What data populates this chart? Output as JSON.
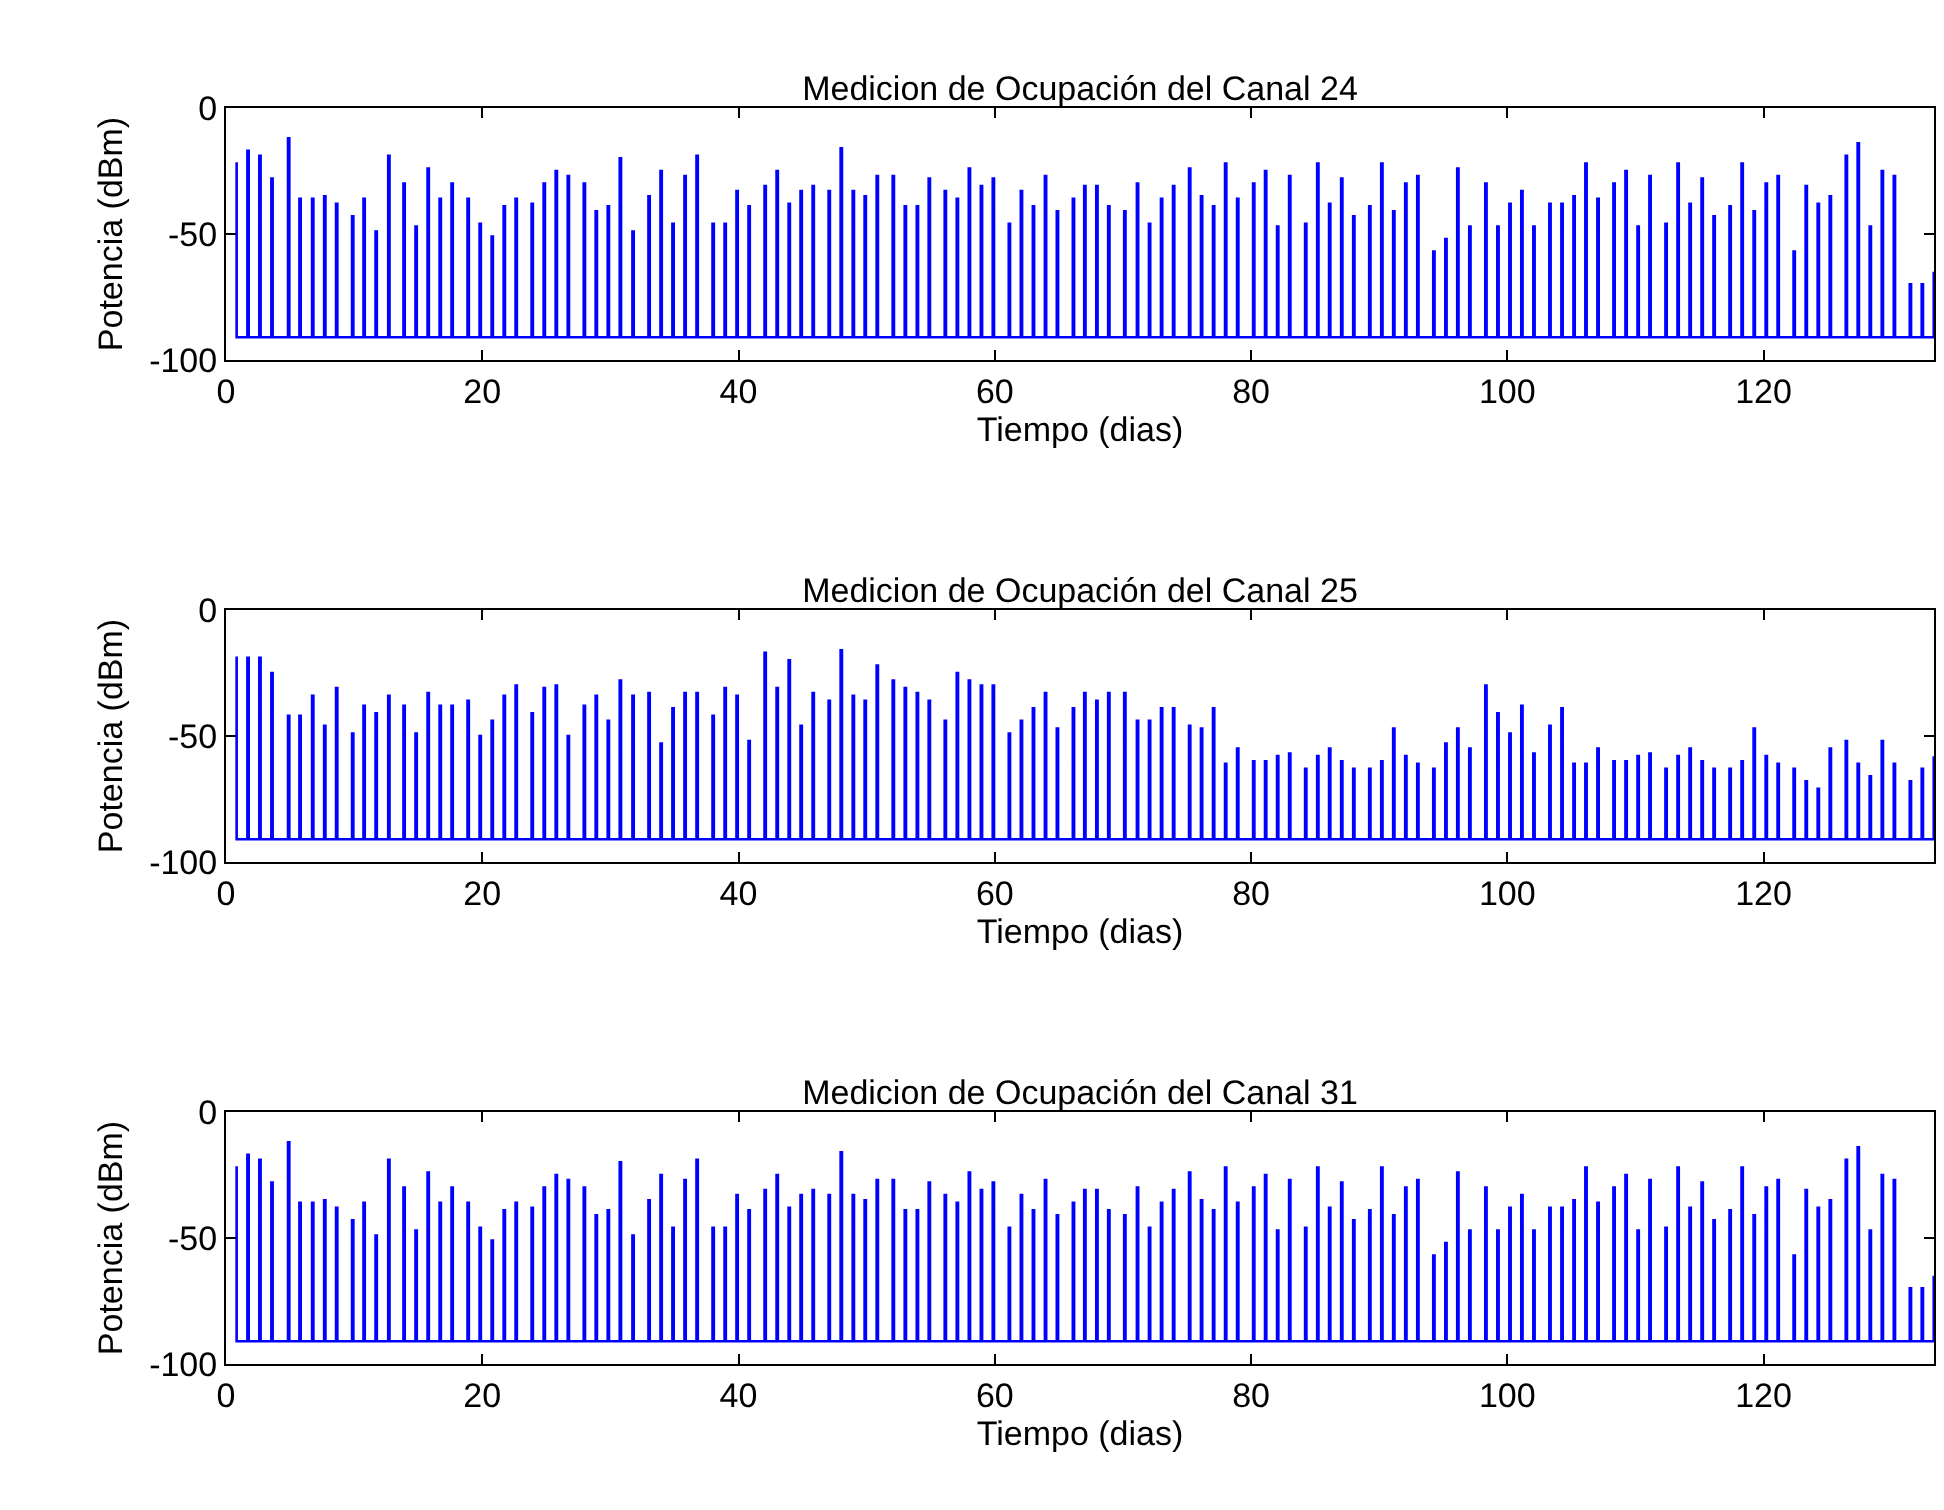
{
  "chart_data": [
    {
      "type": "step",
      "title": "Medicion de Ocupación del Canal 24",
      "xlabel": "Tiempo (dias)",
      "ylabel": "Potencia (dBm)",
      "color": "#0000ff",
      "xlim": [
        0,
        133.3
      ],
      "ylim": [
        -100,
        0
      ],
      "xticks": [
        0,
        20,
        40,
        60,
        80,
        100,
        120
      ],
      "yticks": [
        -100,
        -50,
        0
      ],
      "x": [
        0.73,
        0.83,
        1.67,
        1.77,
        2.6,
        2.7,
        3.54,
        3.64,
        4.84,
        4.94,
        5.73,
        5.83,
        6.72,
        6.82,
        7.66,
        7.76,
        8.59,
        8.69,
        9.84,
        9.94,
        10.73,
        10.83,
        11.67,
        11.77,
        12.66,
        12.76,
        13.85,
        13.95,
        14.79,
        14.89,
        15.73,
        15.83,
        16.67,
        16.77,
        17.6,
        17.7,
        18.85,
        18.95,
        19.79,
        19.89,
        20.73,
        20.83,
        21.67,
        21.77,
        22.6,
        22.7,
        23.85,
        23.95,
        24.79,
        24.89,
        25.73,
        25.83,
        26.67,
        26.77,
        27.92,
        28.02,
        28.85,
        28.95,
        29.79,
        29.89,
        30.73,
        30.83,
        31.72,
        31.82,
        32.97,
        33.07,
        33.91,
        34.01,
        34.84,
        34.94,
        35.78,
        35.88,
        36.72,
        36.82,
        37.97,
        38.07,
        38.91,
        39.01,
        39.84,
        39.94,
        40.78,
        40.88,
        42.03,
        42.13,
        42.97,
        43.07,
        43.91,
        44.01,
        44.84,
        44.94,
        45.78,
        45.88,
        47.03,
        47.13,
        47.97,
        48.07,
        48.91,
        49.01,
        49.84,
        49.94,
        50.78,
        50.88,
        52.03,
        52.13,
        52.97,
        53.07,
        53.91,
        54.01,
        54.84,
        54.94,
        56.09,
        56.19,
        57.03,
        57.13,
        57.97,
        58.07,
        58.91,
        59.01,
        59.84,
        59.94,
        61.09,
        61.19,
        62.03,
        62.13,
        62.97,
        63.07,
        63.91,
        64.01,
        64.84,
        64.94,
        66.09,
        66.19,
        66.98,
        67.08,
        67.92,
        68.02,
        68.85,
        68.95,
        70.1,
        70.2,
        71.09,
        71.19,
        72.03,
        72.13,
        72.97,
        73.07,
        73.91,
        74.01,
        75.16,
        75.26,
        76.09,
        76.19,
        77.03,
        77.13,
        77.97,
        78.07,
        78.91,
        79.01,
        80.16,
        80.26,
        81.09,
        81.19,
        82.03,
        82.13,
        82.97,
        83.07,
        84.22,
        84.32,
        85.16,
        85.26,
        86.09,
        86.19,
        87.03,
        87.13,
        87.97,
        88.07,
        89.22,
        89.32,
        90.16,
        90.26,
        91.09,
        91.19,
        92.03,
        92.13,
        92.97,
        93.07,
        94.22,
        94.32,
        95.16,
        95.26,
        96.09,
        96.19,
        97.03,
        97.13,
        98.28,
        98.38,
        99.22,
        99.32,
        100.16,
        100.26,
        101.09,
        101.19,
        102.03,
        102.13,
        103.28,
        103.38,
        104.22,
        104.32,
        105.16,
        105.26,
        106.09,
        106.19,
        107.03,
        107.13,
        108.28,
        108.38,
        109.22,
        109.32,
        110.16,
        110.26,
        111.09,
        111.19,
        112.34,
        112.44,
        113.28,
        113.38,
        114.22,
        114.32,
        115.16,
        115.26,
        116.09,
        116.19,
        117.34,
        117.44,
        118.28,
        118.38,
        119.22,
        119.32,
        120.16,
        120.26,
        121.09,
        121.19,
        122.34,
        122.44,
        123.28,
        123.38,
        124.22,
        124.32,
        125.16,
        125.26,
        126.41,
        126.51,
        127.34,
        127.44,
        128.28,
        128.38,
        129.22,
        129.32,
        130.16,
        130.26,
        131.41,
        131.51,
        132.34,
        132.44,
        133.28
      ],
      "values": [
        -22,
        -91,
        -17,
        -91,
        -19,
        -91,
        -28,
        -91,
        -12,
        -91,
        -36,
        -91,
        -36,
        -91,
        -35,
        -91,
        -38,
        -91,
        -43,
        -91,
        -36,
        -91,
        -49,
        -91,
        -19,
        -91,
        -30,
        -91,
        -47,
        -91,
        -24,
        -91,
        -36,
        -91,
        -30,
        -91,
        -36,
        -91,
        -46,
        -91,
        -51,
        -91,
        -39,
        -91,
        -36,
        -91,
        -38,
        -91,
        -30,
        -91,
        -25,
        -91,
        -27,
        -91,
        -30,
        -91,
        -41,
        -91,
        -39,
        -91,
        -20,
        -91,
        -49,
        -91,
        -35,
        -91,
        -25,
        -91,
        -46,
        -91,
        -27,
        -91,
        -19,
        -91,
        -46,
        -91,
        -46,
        -91,
        -33,
        -91,
        -39,
        -91,
        -31,
        -91,
        -25,
        -91,
        -38,
        -91,
        -33,
        -91,
        -31,
        -91,
        -33,
        -91,
        -16,
        -91,
        -33,
        -91,
        -35,
        -91,
        -27,
        -91,
        -27,
        -91,
        -39,
        -91,
        -39,
        -91,
        -28,
        -91,
        -33,
        -91,
        -36,
        -91,
        -24,
        -91,
        -31,
        -91,
        -28,
        -91,
        -46,
        -91,
        -33,
        -91,
        -39,
        -91,
        -27,
        -91,
        -41,
        -91,
        -36,
        -91,
        -31,
        -91,
        -31,
        -91,
        -39,
        -91,
        -41,
        -91,
        -30,
        -91,
        -46,
        -91,
        -36,
        -91,
        -31,
        -91,
        -24,
        -91,
        -35,
        -91,
        -39,
        -91,
        -22,
        -91,
        -36,
        -91,
        -30,
        -91,
        -25,
        -91,
        -47,
        -91,
        -27,
        -91,
        -46,
        -91,
        -22,
        -91,
        -38,
        -91,
        -28,
        -91,
        -43,
        -91,
        -39,
        -91,
        -22,
        -91,
        -41,
        -91,
        -30,
        -91,
        -27,
        -91,
        -57,
        -91,
        -52,
        -91,
        -24,
        -91,
        -47,
        -91,
        -30,
        -91,
        -47,
        -91,
        -38,
        -91,
        -33,
        -91,
        -47,
        -91,
        -38,
        -91,
        -38,
        -91,
        -35,
        -91,
        -22,
        -91,
        -36,
        -91,
        -30,
        -91,
        -25,
        -91,
        -47,
        -91,
        -27,
        -91,
        -46,
        -91,
        -22,
        -91,
        -38,
        -91,
        -28,
        -91,
        -43,
        -91,
        -39,
        -91,
        -22,
        -91,
        -41,
        -91,
        -30,
        -91,
        -27,
        -91,
        -57,
        -91,
        -31,
        -91,
        -38,
        -91,
        -35,
        -91,
        -19,
        -91,
        -14,
        -91,
        -47,
        -91,
        -25,
        -91,
        -27,
        -91,
        -70,
        -91,
        -70,
        -91,
        -65
      ]
    },
    {
      "type": "step",
      "title": "Medicion de Ocupación del Canal 25",
      "xlabel": "Tiempo (dias)",
      "ylabel": "Potencia (dBm)",
      "color": "#0000ff",
      "xlim": [
        0,
        133.3
      ],
      "ylim": [
        -100,
        0
      ],
      "xticks": [
        0,
        20,
        40,
        60,
        80,
        100,
        120
      ],
      "yticks": [
        -100,
        -50,
        0
      ],
      "x": [
        0.73,
        0.83,
        1.67,
        1.77,
        2.6,
        2.7,
        3.54,
        3.64,
        4.84,
        4.94,
        5.73,
        5.83,
        6.72,
        6.82,
        7.66,
        7.76,
        8.59,
        8.69,
        9.84,
        9.94,
        10.73,
        10.83,
        11.67,
        11.77,
        12.66,
        12.76,
        13.85,
        13.95,
        14.79,
        14.89,
        15.73,
        15.83,
        16.67,
        16.77,
        17.6,
        17.7,
        18.85,
        18.95,
        19.79,
        19.89,
        20.73,
        20.83,
        21.67,
        21.77,
        22.6,
        22.7,
        23.85,
        23.95,
        24.79,
        24.89,
        25.73,
        25.83,
        26.67,
        26.77,
        27.92,
        28.02,
        28.85,
        28.95,
        29.79,
        29.89,
        30.73,
        30.83,
        31.72,
        31.82,
        32.97,
        33.07,
        33.91,
        34.01,
        34.84,
        34.94,
        35.78,
        35.88,
        36.72,
        36.82,
        37.97,
        38.07,
        38.91,
        39.01,
        39.84,
        39.94,
        40.78,
        40.88,
        42.03,
        42.13,
        42.97,
        43.07,
        43.91,
        44.01,
        44.84,
        44.94,
        45.78,
        45.88,
        47.03,
        47.13,
        47.97,
        48.07,
        48.91,
        49.01,
        49.84,
        49.94,
        50.78,
        50.88,
        52.03,
        52.13,
        52.97,
        53.07,
        53.91,
        54.01,
        54.84,
        54.94,
        56.09,
        56.19,
        57.03,
        57.13,
        57.97,
        58.07,
        58.91,
        59.01,
        59.84,
        59.94,
        61.09,
        61.19,
        62.03,
        62.13,
        62.97,
        63.07,
        63.91,
        64.01,
        64.84,
        64.94,
        66.09,
        66.19,
        66.98,
        67.08,
        67.92,
        68.02,
        68.85,
        68.95,
        70.1,
        70.2,
        71.09,
        71.19,
        72.03,
        72.13,
        72.97,
        73.07,
        73.91,
        74.01,
        75.16,
        75.26,
        76.09,
        76.19,
        77.03,
        77.13,
        77.97,
        78.07,
        78.91,
        79.01,
        80.16,
        80.26,
        81.09,
        81.19,
        82.03,
        82.13,
        82.97,
        83.07,
        84.22,
        84.32,
        85.16,
        85.26,
        86.09,
        86.19,
        87.03,
        87.13,
        87.97,
        88.07,
        89.22,
        89.32,
        90.16,
        90.26,
        91.09,
        91.19,
        92.03,
        92.13,
        92.97,
        93.07,
        94.22,
        94.32,
        95.16,
        95.26,
        96.09,
        96.19,
        97.03,
        97.13,
        98.28,
        98.38,
        99.22,
        99.32,
        100.16,
        100.26,
        101.09,
        101.19,
        102.03,
        102.13,
        103.28,
        103.38,
        104.22,
        104.32,
        105.16,
        105.26,
        106.09,
        106.19,
        107.03,
        107.13,
        108.28,
        108.38,
        109.22,
        109.32,
        110.16,
        110.26,
        111.09,
        111.19,
        112.34,
        112.44,
        113.28,
        113.38,
        114.22,
        114.32,
        115.16,
        115.26,
        116.09,
        116.19,
        117.34,
        117.44,
        118.28,
        118.38,
        119.22,
        119.32,
        120.16,
        120.26,
        121.09,
        121.19,
        122.34,
        122.44,
        123.28,
        123.38,
        124.22,
        124.32,
        125.16,
        125.26,
        126.41,
        126.51,
        127.34,
        127.44,
        128.28,
        128.38,
        129.22,
        129.32,
        130.16,
        130.26,
        131.41,
        131.51,
        132.34,
        132.44,
        133.28
      ],
      "values": [
        -19,
        -91,
        -19,
        -91,
        -19,
        -91,
        -25,
        -91,
        -42,
        -91,
        -42,
        -91,
        -34,
        -91,
        -46,
        -91,
        -31,
        -91,
        -49,
        -91,
        -38,
        -91,
        -41,
        -91,
        -34,
        -91,
        -38,
        -91,
        -49,
        -91,
        -33,
        -91,
        -38,
        -91,
        -38,
        -91,
        -36,
        -91,
        -50,
        -91,
        -44,
        -91,
        -34,
        -91,
        -30,
        -91,
        -41,
        -91,
        -31,
        -91,
        -30,
        -91,
        -50,
        -91,
        -38,
        -91,
        -34,
        -91,
        -44,
        -91,
        -28,
        -91,
        -34,
        -91,
        -33,
        -91,
        -53,
        -91,
        -39,
        -91,
        -33,
        -91,
        -33,
        -91,
        -42,
        -91,
        -31,
        -91,
        -34,
        -91,
        -52,
        -91,
        -17,
        -91,
        -31,
        -91,
        -20,
        -91,
        -46,
        -91,
        -33,
        -91,
        -36,
        -91,
        -16,
        -91,
        -34,
        -91,
        -36,
        -91,
        -22,
        -91,
        -28,
        -91,
        -31,
        -91,
        -33,
        -91,
        -36,
        -91,
        -44,
        -91,
        -25,
        -91,
        -28,
        -91,
        -30,
        -91,
        -30,
        -91,
        -49,
        -91,
        -44,
        -91,
        -39,
        -91,
        -33,
        -91,
        -47,
        -91,
        -39,
        -91,
        -33,
        -91,
        -36,
        -91,
        -33,
        -91,
        -33,
        -91,
        -44,
        -91,
        -44,
        -91,
        -39,
        -91,
        -39,
        -91,
        -46,
        -91,
        -47,
        -91,
        -39,
        -91,
        -61,
        -91,
        -55,
        -91,
        -60,
        -91,
        -60,
        -91,
        -58,
        -91,
        -57,
        -91,
        -63,
        -91,
        -58,
        -91,
        -55,
        -91,
        -60,
        -91,
        -63,
        -91,
        -63,
        -91,
        -60,
        -91,
        -47,
        -91,
        -58,
        -91,
        -61,
        -91,
        -63,
        -91,
        -53,
        -91,
        -47,
        -91,
        -55,
        -91,
        -30,
        -91,
        -41,
        -91,
        -49,
        -91,
        -38,
        -91,
        -57,
        -91,
        -46,
        -91,
        -39,
        -91,
        -61,
        -91,
        -61,
        -91,
        -55,
        -91,
        -60,
        -91,
        -60,
        -91,
        -58,
        -91,
        -57,
        -91,
        -63,
        -91,
        -58,
        -91,
        -55,
        -91,
        -60,
        -91,
        -63,
        -91,
        -63,
        -91,
        -60,
        -91,
        -47,
        -91,
        -58,
        -91,
        -61,
        -91,
        -63,
        -91,
        -68,
        -91,
        -71,
        -91,
        -55,
        -91,
        -52,
        -91,
        -61,
        -91,
        -66,
        -91,
        -52,
        -91,
        -61,
        -91,
        -68,
        -91,
        -63,
        -91,
        -58
      ]
    },
    {
      "type": "step",
      "title": "Medicion de Ocupación del Canal 31",
      "xlabel": "Tiempo (dias)",
      "ylabel": "Potencia (dBm)",
      "color": "#0000ff",
      "xlim": [
        0,
        133.3
      ],
      "ylim": [
        -100,
        0
      ],
      "xticks": [
        0,
        20,
        40,
        60,
        80,
        100,
        120
      ],
      "yticks": [
        -100,
        -50,
        0
      ],
      "x": [
        0.73,
        0.83,
        1.67,
        1.77,
        2.6,
        2.7,
        3.54,
        3.64,
        4.84,
        4.94,
        5.73,
        5.83,
        6.72,
        6.82,
        7.66,
        7.76,
        8.59,
        8.69,
        9.84,
        9.94,
        10.73,
        10.83,
        11.67,
        11.77,
        12.66,
        12.76,
        13.85,
        13.95,
        14.79,
        14.89,
        15.73,
        15.83,
        16.67,
        16.77,
        17.6,
        17.7,
        18.85,
        18.95,
        19.79,
        19.89,
        20.73,
        20.83,
        21.67,
        21.77,
        22.6,
        22.7,
        23.85,
        23.95,
        24.79,
        24.89,
        25.73,
        25.83,
        26.67,
        26.77,
        27.92,
        28.02,
        28.85,
        28.95,
        29.79,
        29.89,
        30.73,
        30.83,
        31.72,
        31.82,
        32.97,
        33.07,
        33.91,
        34.01,
        34.84,
        34.94,
        35.78,
        35.88,
        36.72,
        36.82,
        37.97,
        38.07,
        38.91,
        39.01,
        39.84,
        39.94,
        40.78,
        40.88,
        42.03,
        42.13,
        42.97,
        43.07,
        43.91,
        44.01,
        44.84,
        44.94,
        45.78,
        45.88,
        47.03,
        47.13,
        47.97,
        48.07,
        48.91,
        49.01,
        49.84,
        49.94,
        50.78,
        50.88,
        52.03,
        52.13,
        52.97,
        53.07,
        53.91,
        54.01,
        54.84,
        54.94,
        56.09,
        56.19,
        57.03,
        57.13,
        57.97,
        58.07,
        58.91,
        59.01,
        59.84,
        59.94,
        61.09,
        61.19,
        62.03,
        62.13,
        62.97,
        63.07,
        63.91,
        64.01,
        64.84,
        64.94,
        66.09,
        66.19,
        66.98,
        67.08,
        67.92,
        68.02,
        68.85,
        68.95,
        70.1,
        70.2,
        71.09,
        71.19,
        72.03,
        72.13,
        72.97,
        73.07,
        73.91,
        74.01,
        75.16,
        75.26,
        76.09,
        76.19,
        77.03,
        77.13,
        77.97,
        78.07,
        78.91,
        79.01,
        80.16,
        80.26,
        81.09,
        81.19,
        82.03,
        82.13,
        82.97,
        83.07,
        84.22,
        84.32,
        85.16,
        85.26,
        86.09,
        86.19,
        87.03,
        87.13,
        87.97,
        88.07,
        89.22,
        89.32,
        90.16,
        90.26,
        91.09,
        91.19,
        92.03,
        92.13,
        92.97,
        93.07,
        94.22,
        94.32,
        95.16,
        95.26,
        96.09,
        96.19,
        97.03,
        97.13,
        98.28,
        98.38,
        99.22,
        99.32,
        100.16,
        100.26,
        101.09,
        101.19,
        102.03,
        102.13,
        103.28,
        103.38,
        104.22,
        104.32,
        105.16,
        105.26,
        106.09,
        106.19,
        107.03,
        107.13,
        108.28,
        108.38,
        109.22,
        109.32,
        110.16,
        110.26,
        111.09,
        111.19,
        112.34,
        112.44,
        113.28,
        113.38,
        114.22,
        114.32,
        115.16,
        115.26,
        116.09,
        116.19,
        117.34,
        117.44,
        118.28,
        118.38,
        119.22,
        119.32,
        120.16,
        120.26,
        121.09,
        121.19,
        122.34,
        122.44,
        123.28,
        123.38,
        124.22,
        124.32,
        125.16,
        125.26,
        126.41,
        126.51,
        127.34,
        127.44,
        128.28,
        128.38,
        129.22,
        129.32,
        130.16,
        130.26,
        131.41,
        131.51,
        132.34,
        132.44,
        133.28
      ],
      "values": [
        -22,
        -91,
        -17,
        -91,
        -19,
        -91,
        -28,
        -91,
        -12,
        -91,
        -36,
        -91,
        -36,
        -91,
        -35,
        -91,
        -38,
        -91,
        -43,
        -91,
        -36,
        -91,
        -49,
        -91,
        -19,
        -91,
        -30,
        -91,
        -47,
        -91,
        -24,
        -91,
        -36,
        -91,
        -30,
        -91,
        -36,
        -91,
        -46,
        -91,
        -51,
        -91,
        -39,
        -91,
        -36,
        -91,
        -38,
        -91,
        -30,
        -91,
        -25,
        -91,
        -27,
        -91,
        -30,
        -91,
        -41,
        -91,
        -39,
        -91,
        -20,
        -91,
        -49,
        -91,
        -35,
        -91,
        -25,
        -91,
        -46,
        -91,
        -27,
        -91,
        -19,
        -91,
        -46,
        -91,
        -46,
        -91,
        -33,
        -91,
        -39,
        -91,
        -31,
        -91,
        -25,
        -91,
        -38,
        -91,
        -33,
        -91,
        -31,
        -91,
        -33,
        -91,
        -16,
        -91,
        -33,
        -91,
        -35,
        -91,
        -27,
        -91,
        -27,
        -91,
        -39,
        -91,
        -39,
        -91,
        -28,
        -91,
        -33,
        -91,
        -36,
        -91,
        -24,
        -91,
        -31,
        -91,
        -28,
        -91,
        -46,
        -91,
        -33,
        -91,
        -39,
        -91,
        -27,
        -91,
        -41,
        -91,
        -36,
        -91,
        -31,
        -91,
        -31,
        -91,
        -39,
        -91,
        -41,
        -91,
        -30,
        -91,
        -46,
        -91,
        -36,
        -91,
        -31,
        -91,
        -24,
        -91,
        -35,
        -91,
        -39,
        -91,
        -22,
        -91,
        -36,
        -91,
        -30,
        -91,
        -25,
        -91,
        -47,
        -91,
        -27,
        -91,
        -46,
        -91,
        -22,
        -91,
        -38,
        -91,
        -28,
        -91,
        -43,
        -91,
        -39,
        -91,
        -22,
        -91,
        -41,
        -91,
        -30,
        -91,
        -27,
        -91,
        -57,
        -91,
        -52,
        -91,
        -24,
        -91,
        -47,
        -91,
        -30,
        -91,
        -47,
        -91,
        -38,
        -91,
        -33,
        -91,
        -47,
        -91,
        -38,
        -91,
        -38,
        -91,
        -35,
        -91,
        -22,
        -91,
        -36,
        -91,
        -30,
        -91,
        -25,
        -91,
        -47,
        -91,
        -27,
        -91,
        -46,
        -91,
        -22,
        -91,
        -38,
        -91,
        -28,
        -91,
        -43,
        -91,
        -39,
        -91,
        -22,
        -91,
        -41,
        -91,
        -30,
        -91,
        -27,
        -91,
        -57,
        -91,
        -31,
        -91,
        -38,
        -91,
        -35,
        -91,
        -19,
        -91,
        -14,
        -91,
        -47,
        -91,
        -25,
        -91,
        -27,
        -91,
        -70,
        -91,
        -70,
        -91,
        -65
      ]
    }
  ]
}
